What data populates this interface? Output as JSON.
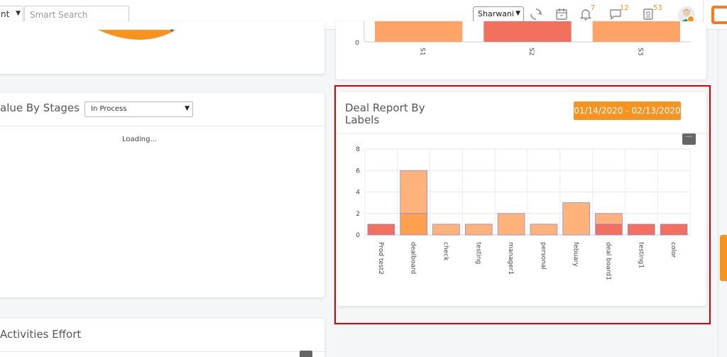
{
  "topbar": {
    "module_select_value": "nt",
    "search_placeholder": "Smart Search",
    "user_select_value": "Sharwani",
    "notifications_count": "7",
    "messages_count": "12",
    "tasks_count": "53",
    "icons": [
      "sync-icon",
      "calendar-icon",
      "bell-icon",
      "chat-icon",
      "task-icon",
      "avatar",
      "app-logo-icon"
    ]
  },
  "top_chart": {
    "categories": [
      "S1",
      "S2",
      "S3"
    ],
    "zero_tick": "0",
    "colors": [
      "#ffa366",
      "#f2705e",
      "#ffa366"
    ]
  },
  "stages_card": {
    "title": "alue By Stages",
    "stage_select_value": "In Process",
    "loading_text": "Loading..."
  },
  "deal_report_card": {
    "title_line1": "Deal Report By",
    "title_line2": "Labels",
    "date_range": "01/14/2020 - 02/13/2020",
    "menu_label": "···"
  },
  "activities_card": {
    "title": "Activities Effort"
  },
  "colors": {
    "accent": "#f7931e",
    "bar_light": "#ffb27a",
    "bar_mid": "#ffa04f",
    "bar_red": "#f2705e",
    "highlight": "#e00000"
  },
  "chart_data": {
    "type": "bar",
    "stacked": true,
    "categories": [
      "Prod test2",
      "dealboard",
      "check",
      "testing",
      "manager1",
      "personal",
      "febuary",
      "deal board1",
      "testing1",
      "color"
    ],
    "y_ticks": [
      "0",
      "2",
      "4",
      "6",
      "8"
    ],
    "ylim": [
      0,
      8
    ],
    "grid": true,
    "bars": [
      {
        "segments": [
          {
            "value": 1,
            "color": "#f2705e"
          }
        ]
      },
      {
        "segments": [
          {
            "value": 2,
            "color": "#ffa04f"
          },
          {
            "value": 4,
            "color": "#ffb27a"
          }
        ]
      },
      {
        "segments": [
          {
            "value": 1,
            "color": "#ffb27a"
          }
        ]
      },
      {
        "segments": [
          {
            "value": 1,
            "color": "#ffb27a"
          }
        ]
      },
      {
        "segments": [
          {
            "value": 2,
            "color": "#ffb27a"
          }
        ]
      },
      {
        "segments": [
          {
            "value": 1,
            "color": "#ffb27a"
          }
        ]
      },
      {
        "segments": [
          {
            "value": 3,
            "color": "#ffb27a"
          }
        ]
      },
      {
        "segments": [
          {
            "value": 1,
            "color": "#f2705e"
          },
          {
            "value": 1,
            "color": "#ffb27a"
          }
        ]
      },
      {
        "segments": [
          {
            "value": 1,
            "color": "#f2705e"
          }
        ]
      },
      {
        "segments": [
          {
            "value": 1,
            "color": "#f2705e"
          }
        ]
      }
    ]
  }
}
